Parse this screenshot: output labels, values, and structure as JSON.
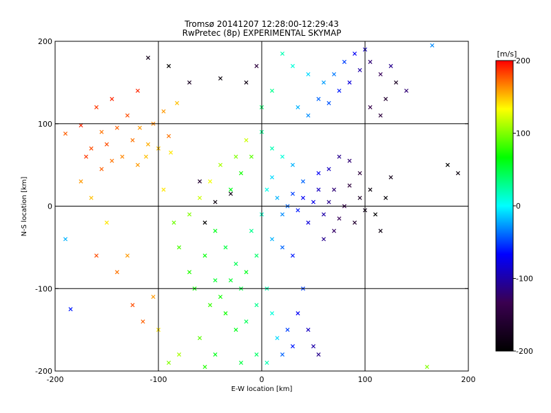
{
  "chart_data": {
    "type": "scatter",
    "title": "Tromsø 20141207 12:28:00-12:29:43",
    "subtitle": "RwPretec (8p) EXPERIMENTAL SKYMAP",
    "xlabel": "E-W location [km]",
    "ylabel": "N-S location [km]",
    "xlim": [
      -200,
      200
    ],
    "ylim": [
      -200,
      200
    ],
    "x_ticks": [
      -200,
      -100,
      0,
      100,
      200
    ],
    "y_ticks": [
      -200,
      -100,
      0,
      100,
      200
    ],
    "x_tick_labels": [
      "-200",
      "-100",
      "0",
      "100",
      "200"
    ],
    "y_tick_labels": [
      "-200",
      "-100",
      "0",
      "100",
      "200"
    ],
    "grid": true,
    "colorbar": {
      "label": "[m/s]",
      "range": [
        -200,
        200
      ],
      "ticks": [
        -200,
        -100,
        0,
        100,
        200
      ],
      "tick_labels": [
        "-200",
        "-100",
        "0",
        "100",
        "200"
      ],
      "stops": [
        "#000000",
        "#3a0050",
        "#0000ff",
        "#00ffff",
        "#00ff00",
        "#ffff00",
        "#ff0000"
      ]
    },
    "series": [
      {
        "values": [
          [
            -190,
            88,
            175
          ],
          [
            -175,
            98,
            190
          ],
          [
            -165,
            70,
            180
          ],
          [
            -160,
            120,
            185
          ],
          [
            -155,
            90,
            170
          ],
          [
            -150,
            75,
            180
          ],
          [
            -145,
            130,
            190
          ],
          [
            -140,
            95,
            175
          ],
          [
            -135,
            60,
            165
          ],
          [
            -130,
            110,
            180
          ],
          [
            -125,
            80,
            170
          ],
          [
            -120,
            140,
            190
          ],
          [
            -118,
            95,
            160
          ],
          [
            -112,
            60,
            150
          ],
          [
            -105,
            100,
            165
          ],
          [
            -100,
            70,
            150
          ],
          [
            -95,
            115,
            160
          ],
          [
            -90,
            85,
            170
          ],
          [
            -88,
            65,
            140
          ],
          [
            -82,
            125,
            150
          ],
          [
            -175,
            30,
            160
          ],
          [
            -165,
            10,
            150
          ],
          [
            -150,
            -20,
            140
          ],
          [
            -160,
            -60,
            180
          ],
          [
            -140,
            -80,
            170
          ],
          [
            -130,
            -60,
            160
          ],
          [
            -125,
            -120,
            180
          ],
          [
            -115,
            -140,
            175
          ],
          [
            -105,
            -110,
            160
          ],
          [
            -100,
            -150,
            140
          ],
          [
            -185,
            -125,
            -60
          ],
          [
            -190,
            -40,
            -20
          ],
          [
            -110,
            180,
            -180
          ],
          [
            -90,
            170,
            -200
          ],
          [
            -70,
            150,
            -170
          ],
          [
            -40,
            155,
            -190
          ],
          [
            -15,
            150,
            -185
          ],
          [
            -5,
            170,
            -150
          ],
          [
            -60,
            30,
            -160
          ],
          [
            -45,
            5,
            -190
          ],
          [
            -30,
            15,
            -180
          ],
          [
            -55,
            -20,
            -200
          ],
          [
            -10,
            60,
            90
          ],
          [
            -20,
            40,
            70
          ],
          [
            -30,
            20,
            60
          ],
          [
            -25,
            60,
            100
          ],
          [
            -15,
            80,
            120
          ],
          [
            -40,
            50,
            110
          ],
          [
            -50,
            30,
            130
          ],
          [
            -60,
            10,
            120
          ],
          [
            -70,
            -10,
            100
          ],
          [
            -45,
            -30,
            60
          ],
          [
            -35,
            -50,
            50
          ],
          [
            -25,
            -70,
            45
          ],
          [
            -15,
            -80,
            60
          ],
          [
            -5,
            -60,
            40
          ],
          [
            -20,
            -100,
            50
          ],
          [
            -30,
            -90,
            55
          ],
          [
            -40,
            -110,
            70
          ],
          [
            -50,
            -120,
            80
          ],
          [
            -35,
            -130,
            70
          ],
          [
            -25,
            -150,
            60
          ],
          [
            -15,
            -140,
            45
          ],
          [
            -5,
            -120,
            30
          ],
          [
            5,
            -100,
            20
          ],
          [
            10,
            -130,
            10
          ],
          [
            15,
            -160,
            -10
          ],
          [
            20,
            -180,
            -40
          ],
          [
            25,
            -150,
            -50
          ],
          [
            30,
            -170,
            -60
          ],
          [
            -60,
            -160,
            90
          ],
          [
            -80,
            -180,
            110
          ],
          [
            -90,
            -190,
            100
          ],
          [
            -70,
            -80,
            75
          ],
          [
            -80,
            -50,
            85
          ],
          [
            -85,
            -20,
            95
          ],
          [
            -95,
            20,
            140
          ],
          [
            -55,
            -60,
            65
          ],
          [
            -65,
            -100,
            70
          ],
          [
            -45,
            -90,
            55
          ],
          [
            -10,
            -30,
            30
          ],
          [
            0,
            -10,
            15
          ],
          [
            5,
            20,
            5
          ],
          [
            10,
            35,
            -10
          ],
          [
            15,
            10,
            -20
          ],
          [
            20,
            -10,
            -30
          ],
          [
            25,
            0,
            -40
          ],
          [
            30,
            15,
            -50
          ],
          [
            35,
            -5,
            -60
          ],
          [
            40,
            10,
            -70
          ],
          [
            45,
            -20,
            -80
          ],
          [
            50,
            5,
            -75
          ],
          [
            55,
            20,
            -90
          ],
          [
            60,
            -10,
            -100
          ],
          [
            65,
            5,
            -110
          ],
          [
            70,
            20,
            -120
          ],
          [
            75,
            -15,
            -130
          ],
          [
            80,
            0,
            -140
          ],
          [
            85,
            25,
            -150
          ],
          [
            90,
            -20,
            -160
          ],
          [
            95,
            10,
            -170
          ],
          [
            100,
            -5,
            -180
          ],
          [
            105,
            20,
            -190
          ],
          [
            110,
            -10,
            -200
          ],
          [
            115,
            -30,
            -185
          ],
          [
            120,
            10,
            -195
          ],
          [
            125,
            35,
            -180
          ],
          [
            95,
            40,
            -150
          ],
          [
            85,
            55,
            -120
          ],
          [
            75,
            60,
            -110
          ],
          [
            65,
            45,
            -90
          ],
          [
            55,
            40,
            -70
          ],
          [
            40,
            30,
            -40
          ],
          [
            30,
            50,
            -20
          ],
          [
            20,
            60,
            10
          ],
          [
            10,
            70,
            20
          ],
          [
            0,
            90,
            30
          ],
          [
            35,
            120,
            -20
          ],
          [
            45,
            110,
            -30
          ],
          [
            55,
            130,
            -40
          ],
          [
            65,
            125,
            -45
          ],
          [
            75,
            140,
            -60
          ],
          [
            85,
            150,
            -80
          ],
          [
            95,
            165,
            -100
          ],
          [
            105,
            175,
            -120
          ],
          [
            115,
            160,
            -130
          ],
          [
            125,
            170,
            -110
          ],
          [
            100,
            190,
            -90
          ],
          [
            90,
            185,
            -70
          ],
          [
            80,
            175,
            -50
          ],
          [
            70,
            160,
            -35
          ],
          [
            60,
            150,
            -25
          ],
          [
            45,
            160,
            -10
          ],
          [
            30,
            170,
            10
          ],
          [
            20,
            185,
            20
          ],
          [
            10,
            140,
            30
          ],
          [
            0,
            120,
            40
          ],
          [
            105,
            120,
            -140
          ],
          [
            115,
            110,
            -150
          ],
          [
            120,
            130,
            -160
          ],
          [
            130,
            150,
            -170
          ],
          [
            140,
            140,
            -120
          ],
          [
            -5,
            -180,
            40
          ],
          [
            5,
            -190,
            20
          ],
          [
            -45,
            -180,
            60
          ],
          [
            -55,
            -195,
            75
          ],
          [
            -20,
            -190,
            50
          ],
          [
            160,
            -195,
            100
          ],
          [
            165,
            195,
            -30
          ],
          [
            180,
            50,
            -200
          ],
          [
            190,
            40,
            -190
          ],
          [
            -145,
            55,
            170
          ],
          [
            -155,
            45,
            175
          ],
          [
            -170,
            60,
            185
          ],
          [
            -120,
            50,
            160
          ],
          [
            -110,
            75,
            155
          ],
          [
            40,
            -100,
            -50
          ],
          [
            35,
            -130,
            -70
          ],
          [
            45,
            -150,
            -90
          ],
          [
            50,
            -170,
            -100
          ],
          [
            55,
            -180,
            -110
          ],
          [
            30,
            -60,
            -60
          ],
          [
            20,
            -50,
            -40
          ],
          [
            10,
            -40,
            -20
          ],
          [
            60,
            -40,
            -110
          ],
          [
            70,
            -30,
            -125
          ]
        ]
      }
    ]
  }
}
